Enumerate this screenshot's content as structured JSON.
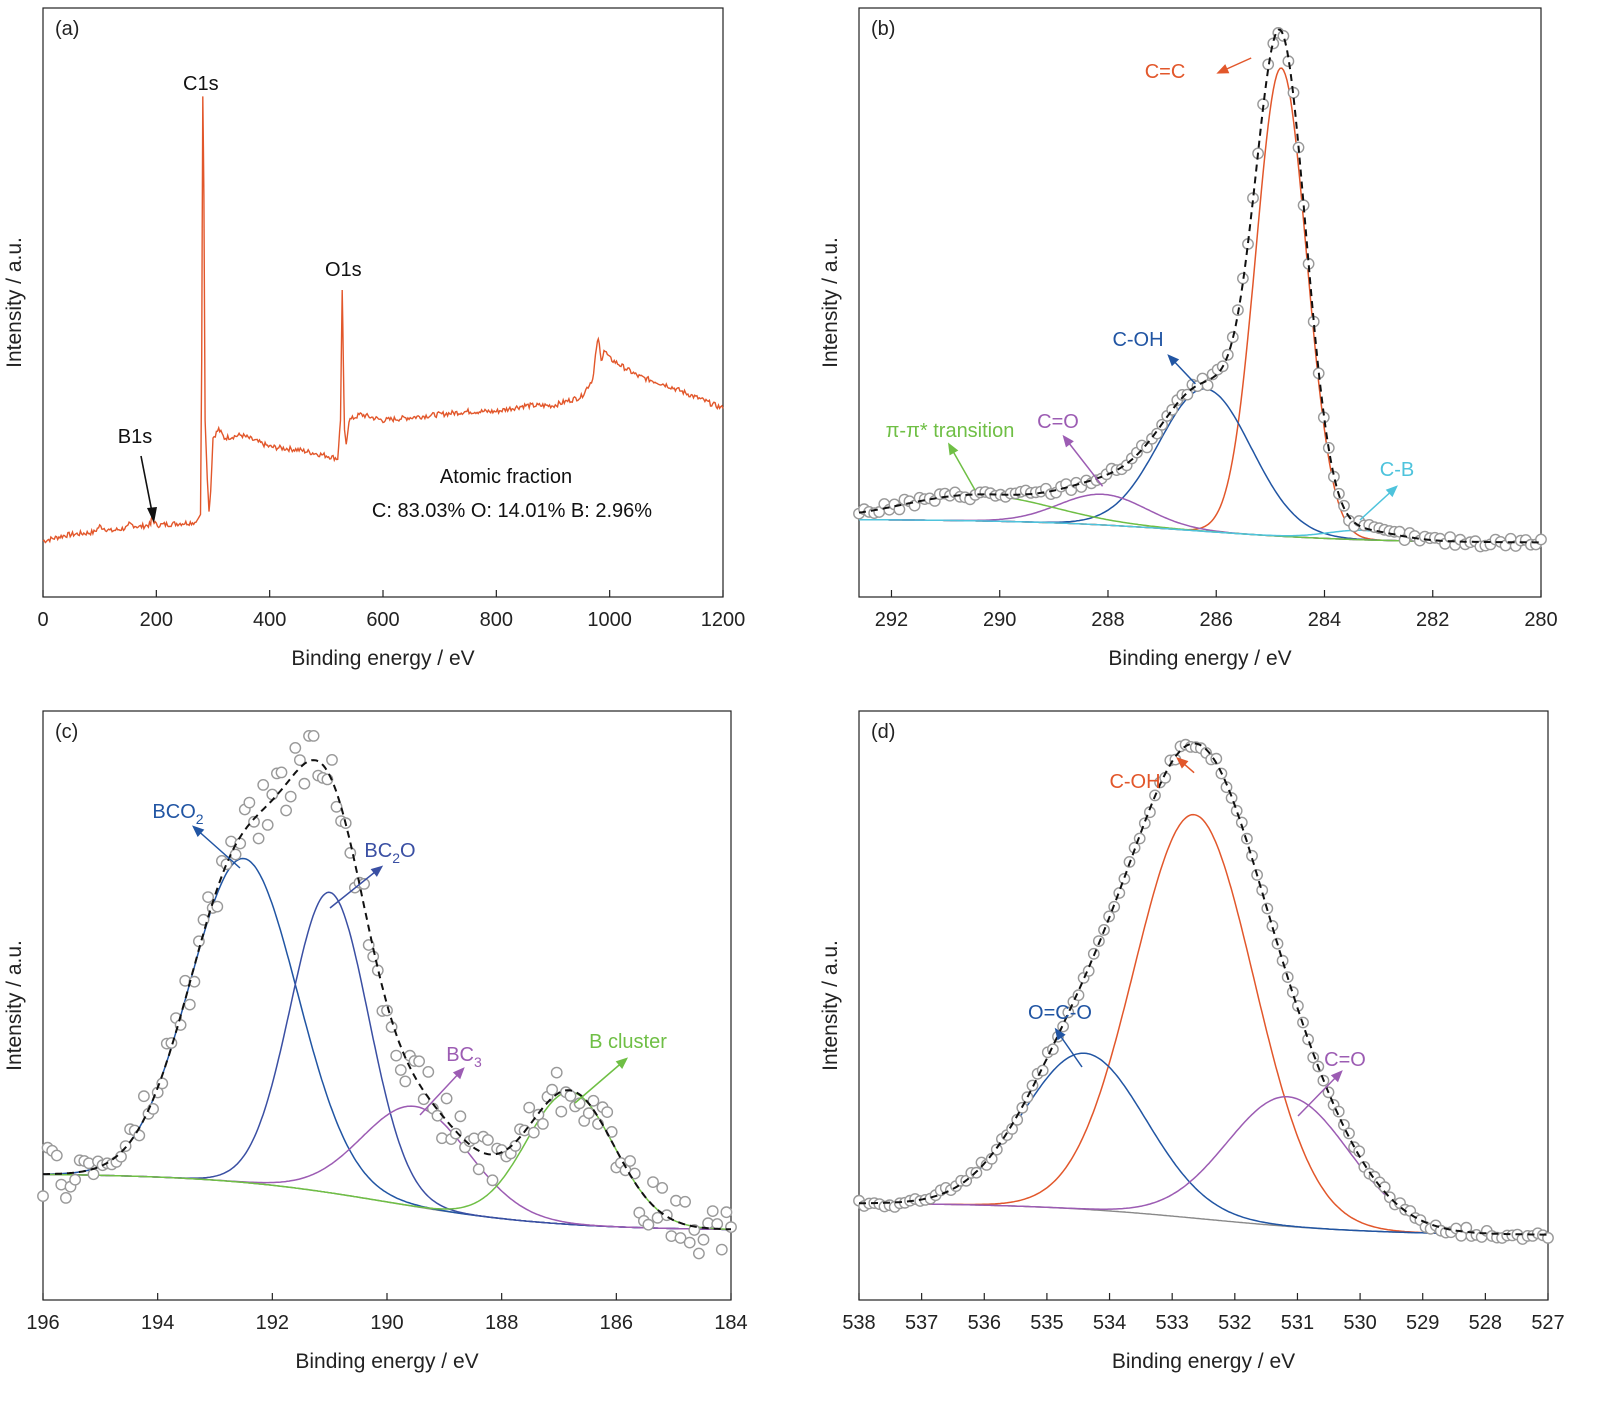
{
  "figure": {
    "arrow_color_map_note": "",
    "background": "#ffffff"
  },
  "chart_data": [
    {
      "panel_label": "(a)",
      "type": "line",
      "xlabel": "Binding energy / eV",
      "ylabel": "Intensity / a.u.",
      "xlim": [
        0,
        1200
      ],
      "ylim": [
        0,
        100
      ],
      "x_ticks": [
        0,
        200,
        400,
        600,
        800,
        1000,
        1200
      ],
      "series": [
        {
          "color": "#e2572b",
          "x": [
            0,
            40,
            90,
            100,
            120,
            150,
            152,
            170,
            190,
            192,
            200,
            240,
            270,
            278,
            280,
            282,
            284,
            286,
            290,
            293,
            296,
            300,
            310,
            320,
            350,
            400,
            450,
            500,
            520,
            525,
            528,
            530,
            532,
            535,
            540,
            560,
            580,
            600,
            650,
            700,
            750,
            800,
            850,
            900,
            950,
            970,
            975,
            980,
            985,
            990,
            1000,
            1050,
            1100,
            1150,
            1200
          ],
          "y": [
            9.5,
            10.5,
            11.0,
            12.0,
            11.2,
            11.8,
            12.4,
            11.9,
            12.3,
            13.5,
            12.2,
            12.5,
            12.7,
            14.0,
            40.0,
            85.0,
            68.0,
            30.0,
            20.0,
            14.5,
            18.0,
            27.0,
            28.5,
            27.0,
            27.5,
            25.5,
            25.0,
            24.0,
            23.5,
            30.0,
            52.0,
            40.0,
            28.0,
            26.0,
            30.0,
            31.0,
            30.5,
            30.0,
            30.5,
            31.0,
            31.5,
            31.5,
            32.5,
            32.5,
            34.0,
            37.0,
            41.0,
            44.0,
            40.0,
            42.0,
            40.5,
            37.5,
            36.0,
            34.0,
            32.0
          ]
        }
      ],
      "annotations": [
        {
          "text": "C1s",
          "x": 282
        },
        {
          "text": "O1s",
          "x": 530
        },
        {
          "text": "B1s",
          "x": 192
        },
        {
          "text": "Atomic fraction"
        },
        {
          "text": "C: 83.03%    O: 14.01%    B: 2.96%"
        }
      ]
    },
    {
      "panel_label": "(b)",
      "type": "line",
      "xlabel": "Binding energy / eV",
      "ylabel": "Intensity / a.u.",
      "xlim": [
        292.6,
        280
      ],
      "ylim": [
        0,
        100
      ],
      "x_ticks": [
        292,
        290,
        288,
        286,
        284,
        282,
        280
      ],
      "baseline": {
        "left": 13.2,
        "right": 9.2
      },
      "components": [
        {
          "label": "C=C",
          "color": "#e2572b",
          "center": 284.8,
          "amplitude": 79.5,
          "fwhm": 1.1
        },
        {
          "label": "C-OH",
          "color": "#2155a3",
          "center": 286.2,
          "amplitude": 24.2,
          "fwhm": 2.0
        },
        {
          "label": "C=O",
          "color": "#9c5cb3",
          "center": 288.1,
          "amplitude": 5.2,
          "fwhm": 1.9
        },
        {
          "label": "π-π* transition",
          "color": "#6fbf45",
          "center": 290.4,
          "amplitude": 4.4,
          "fwhm": 3.2
        },
        {
          "label": "C-B",
          "color": "#4ec3dc",
          "center": 283.3,
          "amplitude": 1.6,
          "fwhm": 1.5
        }
      ],
      "envelope_color": "#111111",
      "points_color": "#999999"
    },
    {
      "panel_label": "(c)",
      "type": "line",
      "xlabel": "Binding energy / eV",
      "ylabel": "Intensity / a.u.",
      "xlim": [
        196,
        184
      ],
      "ylim": [
        0,
        100
      ],
      "x_ticks": [
        196,
        194,
        192,
        190,
        188,
        186,
        184
      ],
      "baseline": {
        "left": 21.5,
        "right": 11.8
      },
      "components": [
        {
          "label": "BCO",
          "sub": "2",
          "label_after": "",
          "color": "#2155a3",
          "center": 192.5,
          "amplitude": 55.0,
          "fwhm": 2.2
        },
        {
          "label": "BC",
          "sub": "2",
          "label_after": "O",
          "color": "#3a4fa3",
          "center": 191.0,
          "amplitude": 51.0,
          "fwhm": 1.6
        },
        {
          "label": "BC",
          "sub": "3",
          "label_after": "",
          "color": "#9c5cb3",
          "center": 189.5,
          "amplitude": 17.0,
          "fwhm": 2.2
        },
        {
          "label": "B cluster",
          "sub": "",
          "label_after": "",
          "color": "#6fbf45",
          "center": 186.8,
          "amplitude": 22.5,
          "fwhm": 1.8
        }
      ],
      "envelope_color": "#111111",
      "points_color": "#999999"
    },
    {
      "panel_label": "(d)",
      "type": "line",
      "xlabel": "Binding energy / eV",
      "ylabel": "Intensity / a.u.",
      "xlim": [
        538,
        527
      ],
      "ylim": [
        0,
        100
      ],
      "x_ticks": [
        538,
        537,
        536,
        535,
        534,
        533,
        532,
        531,
        530,
        529,
        528,
        527
      ],
      "baseline": {
        "left": 16.5,
        "right": 11.0
      },
      "components": [
        {
          "label": "C-OH",
          "color": "#e2572b",
          "center": 532.65,
          "amplitude": 68.5,
          "fwhm": 2.25
        },
        {
          "label": "O=C-O",
          "color": "#2155a3",
          "center": 534.4,
          "amplitude": 26.5,
          "fwhm": 2.3
        },
        {
          "label": "C=O",
          "color": "#9c5cb3",
          "center": 531.15,
          "amplitude": 22.0,
          "fwhm": 2.3
        }
      ],
      "envelope_color": "#111111",
      "points_color": "#999999"
    }
  ]
}
